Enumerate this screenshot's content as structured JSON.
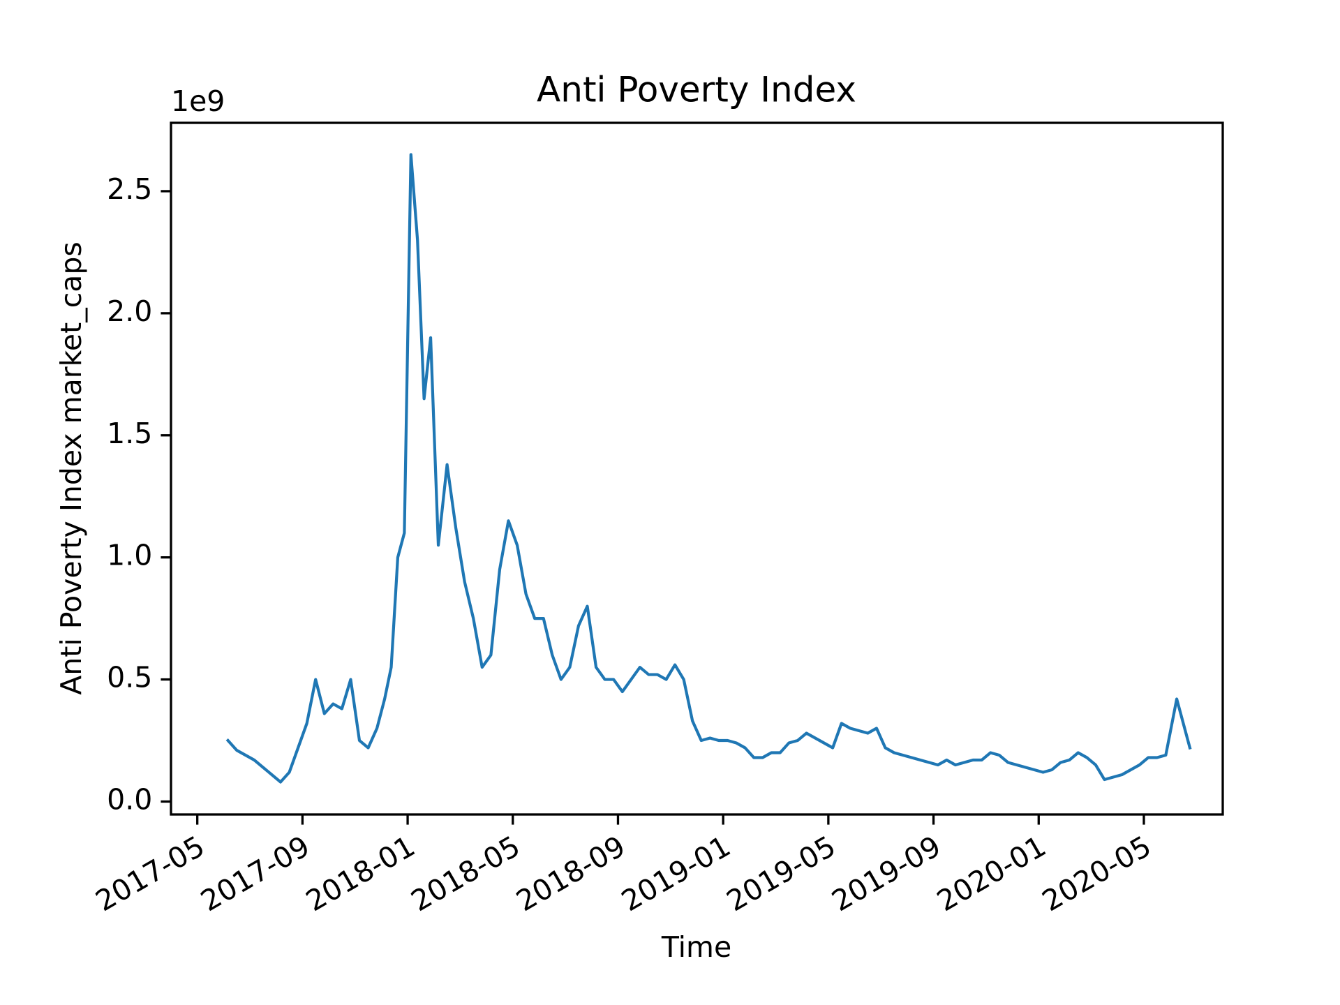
{
  "chart_data": {
    "type": "line",
    "title": "Anti Poverty Index",
    "x_label": "Time",
    "y_label": "Anti Poverty Index market_caps",
    "y_offset_label": "1e9",
    "color": "#1f77b4",
    "x": [
      "2017-06",
      "2017-06",
      "2017-06",
      "2017-07",
      "2017-07",
      "2017-07",
      "2017-08",
      "2017-08",
      "2017-08",
      "2017-09",
      "2017-09",
      "2017-09",
      "2017-10",
      "2017-10",
      "2017-10",
      "2017-11",
      "2017-11",
      "2017-11",
      "2017-12",
      "2017-12",
      "2017-12",
      "2017-12",
      "2018-01",
      "2018-01",
      "2018-01",
      "2018-01",
      "2018-02",
      "2018-02",
      "2018-02",
      "2018-03",
      "2018-03",
      "2018-03",
      "2018-04",
      "2018-04",
      "2018-04",
      "2018-05",
      "2018-05",
      "2018-05",
      "2018-06",
      "2018-06",
      "2018-06",
      "2018-07",
      "2018-07",
      "2018-07",
      "2018-08",
      "2018-08",
      "2018-08",
      "2018-09",
      "2018-09",
      "2018-09",
      "2018-10",
      "2018-10",
      "2018-10",
      "2018-11",
      "2018-11",
      "2018-11",
      "2018-12",
      "2018-12",
      "2018-12",
      "2019-01",
      "2019-01",
      "2019-01",
      "2019-02",
      "2019-02",
      "2019-02",
      "2019-03",
      "2019-03",
      "2019-03",
      "2019-04",
      "2019-04",
      "2019-04",
      "2019-05",
      "2019-05",
      "2019-05",
      "2019-06",
      "2019-06",
      "2019-06",
      "2019-07",
      "2019-07",
      "2019-07",
      "2019-08",
      "2019-08",
      "2019-08",
      "2019-09",
      "2019-09",
      "2019-09",
      "2019-10",
      "2019-10",
      "2019-10",
      "2019-11",
      "2019-11",
      "2019-11",
      "2019-12",
      "2019-12",
      "2019-12",
      "2020-01",
      "2020-01",
      "2020-01",
      "2020-02",
      "2020-02",
      "2020-02",
      "2020-03",
      "2020-03",
      "2020-03",
      "2020-04",
      "2020-04",
      "2020-04",
      "2020-05",
      "2020-05",
      "2020-05",
      "2020-06",
      "2020-06"
    ],
    "values": [
      250000000,
      210000000,
      190000000,
      170000000,
      140000000,
      110000000,
      80000000,
      120000000,
      220000000,
      320000000,
      500000000,
      360000000,
      400000000,
      380000000,
      500000000,
      250000000,
      220000000,
      300000000,
      420000000,
      550000000,
      1000000000,
      1100000000,
      2650000000,
      2300000000,
      1650000000,
      1900000000,
      1050000000,
      1380000000,
      1120000000,
      900000000,
      750000000,
      550000000,
      600000000,
      950000000,
      1150000000,
      1050000000,
      850000000,
      750000000,
      750000000,
      600000000,
      500000000,
      550000000,
      720000000,
      800000000,
      550000000,
      500000000,
      500000000,
      450000000,
      500000000,
      550000000,
      520000000,
      520000000,
      500000000,
      560000000,
      500000000,
      330000000,
      250000000,
      260000000,
      250000000,
      250000000,
      240000000,
      220000000,
      180000000,
      180000000,
      200000000,
      200000000,
      240000000,
      250000000,
      280000000,
      260000000,
      240000000,
      220000000,
      320000000,
      300000000,
      290000000,
      280000000,
      300000000,
      220000000,
      200000000,
      190000000,
      180000000,
      170000000,
      160000000,
      150000000,
      170000000,
      150000000,
      160000000,
      170000000,
      170000000,
      200000000,
      190000000,
      160000000,
      150000000,
      140000000,
      130000000,
      120000000,
      130000000,
      160000000,
      170000000,
      200000000,
      180000000,
      150000000,
      90000000,
      100000000,
      110000000,
      130000000,
      150000000,
      180000000,
      180000000,
      190000000,
      420000000,
      220000000
    ],
    "xlim": [
      "2017-04",
      "2020-08"
    ],
    "xticks": [
      "2017-05",
      "2017-09",
      "2018-01",
      "2018-05",
      "2018-09",
      "2019-01",
      "2019-05",
      "2019-09",
      "2020-01",
      "2020-05"
    ],
    "ylim": [
      -53000000,
      2780000000
    ],
    "yticks": [
      {
        "value": 0,
        "label": "0.0"
      },
      {
        "value": 500000000,
        "label": "0.5"
      },
      {
        "value": 1000000000,
        "label": "1.0"
      },
      {
        "value": 1500000000,
        "label": "1.5"
      },
      {
        "value": 2000000000,
        "label": "2.0"
      },
      {
        "value": 2500000000,
        "label": "2.5"
      }
    ]
  }
}
